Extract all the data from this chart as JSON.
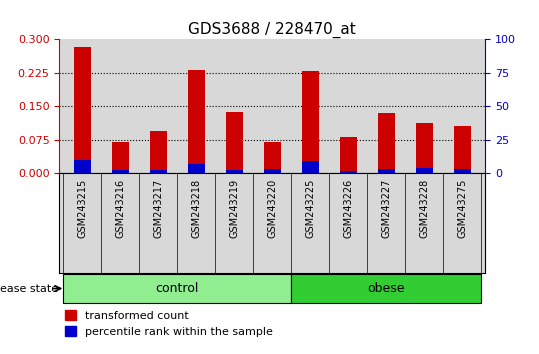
{
  "title": "GDS3688 / 228470_at",
  "samples": [
    "GSM243215",
    "GSM243216",
    "GSM243217",
    "GSM243218",
    "GSM243219",
    "GSM243220",
    "GSM243225",
    "GSM243226",
    "GSM243227",
    "GSM243228",
    "GSM243275"
  ],
  "red_values": [
    0.282,
    0.07,
    0.095,
    0.23,
    0.138,
    0.071,
    0.228,
    0.082,
    0.135,
    0.113,
    0.105
  ],
  "blue_values": [
    0.03,
    0.007,
    0.008,
    0.022,
    0.007,
    0.01,
    0.028,
    0.006,
    0.01,
    0.012,
    0.01
  ],
  "groups": [
    "control",
    "control",
    "control",
    "control",
    "control",
    "control",
    "obese",
    "obese",
    "obese",
    "obese",
    "obese"
  ],
  "control_color": "#90ee90",
  "obese_color": "#32cd32",
  "group_label": "disease state",
  "ylim_left": [
    0,
    0.3
  ],
  "ylim_right": [
    0,
    100
  ],
  "yticks_left": [
    0,
    0.075,
    0.15,
    0.225,
    0.3
  ],
  "yticks_right": [
    0,
    25,
    50,
    75,
    100
  ],
  "grid_lines": [
    0.075,
    0.15,
    0.225
  ],
  "bar_color_red": "#cc0000",
  "bar_color_blue": "#0000cc",
  "legend_red": "transformed count",
  "legend_blue": "percentile rank within the sample",
  "ax_bg": "#d8d8d8",
  "title_fontsize": 11
}
